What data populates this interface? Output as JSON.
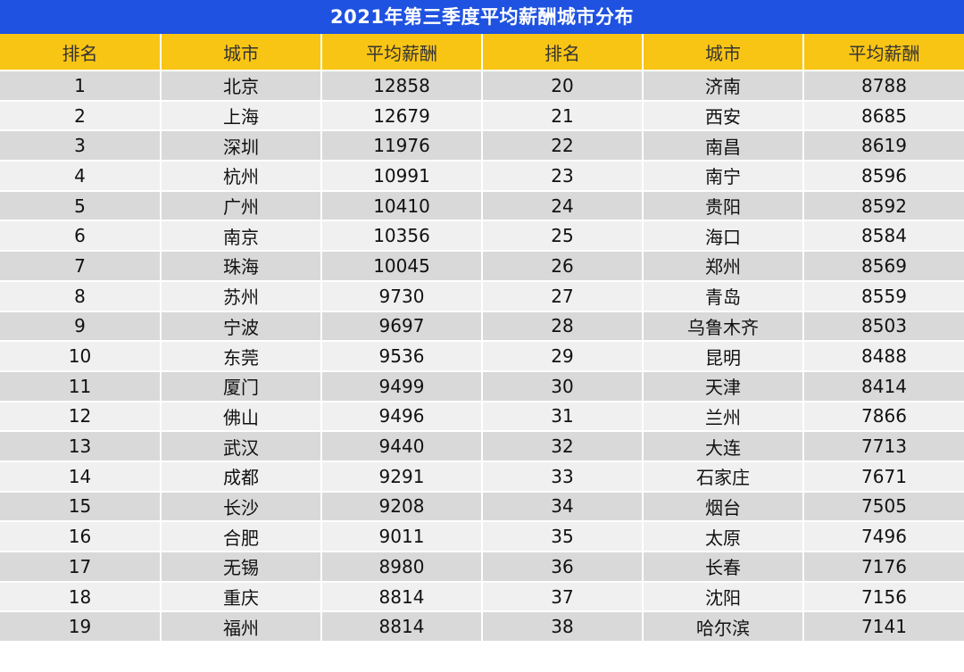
{
  "title": "2021年第三季度平均薪酬城市分布",
  "headers": [
    "排名",
    "城市",
    "平均薪酬",
    "排名",
    "城市",
    "平均薪酬"
  ],
  "colors": {
    "title_bg": "#1f52e0",
    "header_bg": "#f9c515",
    "row_odd_bg": "#d9d9d9",
    "row_even_bg": "#f0f0f0"
  },
  "rows": [
    {
      "rank_a": "1",
      "city_a": "北京",
      "salary_a": "12858",
      "rank_b": "20",
      "city_b": "济南",
      "salary_b": "8788"
    },
    {
      "rank_a": "2",
      "city_a": "上海",
      "salary_a": "12679",
      "rank_b": "21",
      "city_b": "西安",
      "salary_b": "8685"
    },
    {
      "rank_a": "3",
      "city_a": "深圳",
      "salary_a": "11976",
      "rank_b": "22",
      "city_b": "南昌",
      "salary_b": "8619"
    },
    {
      "rank_a": "4",
      "city_a": "杭州",
      "salary_a": "10991",
      "rank_b": "23",
      "city_b": "南宁",
      "salary_b": "8596"
    },
    {
      "rank_a": "5",
      "city_a": "广州",
      "salary_a": "10410",
      "rank_b": "24",
      "city_b": "贵阳",
      "salary_b": "8592"
    },
    {
      "rank_a": "6",
      "city_a": "南京",
      "salary_a": "10356",
      "rank_b": "25",
      "city_b": "海口",
      "salary_b": "8584"
    },
    {
      "rank_a": "7",
      "city_a": "珠海",
      "salary_a": "10045",
      "rank_b": "26",
      "city_b": "郑州",
      "salary_b": "8569"
    },
    {
      "rank_a": "8",
      "city_a": "苏州",
      "salary_a": "9730",
      "rank_b": "27",
      "city_b": "青岛",
      "salary_b": "8559"
    },
    {
      "rank_a": "9",
      "city_a": "宁波",
      "salary_a": "9697",
      "rank_b": "28",
      "city_b": "乌鲁木齐",
      "salary_b": "8503"
    },
    {
      "rank_a": "10",
      "city_a": "东莞",
      "salary_a": "9536",
      "rank_b": "29",
      "city_b": "昆明",
      "salary_b": "8488"
    },
    {
      "rank_a": "11",
      "city_a": "厦门",
      "salary_a": "9499",
      "rank_b": "30",
      "city_b": "天津",
      "salary_b": "8414"
    },
    {
      "rank_a": "12",
      "city_a": "佛山",
      "salary_a": "9496",
      "rank_b": "31",
      "city_b": "兰州",
      "salary_b": "7866"
    },
    {
      "rank_a": "13",
      "city_a": "武汉",
      "salary_a": "9440",
      "rank_b": "32",
      "city_b": "大连",
      "salary_b": "7713"
    },
    {
      "rank_a": "14",
      "city_a": "成都",
      "salary_a": "9291",
      "rank_b": "33",
      "city_b": "石家庄",
      "salary_b": "7671"
    },
    {
      "rank_a": "15",
      "city_a": "长沙",
      "salary_a": "9208",
      "rank_b": "34",
      "city_b": "烟台",
      "salary_b": "7505"
    },
    {
      "rank_a": "16",
      "city_a": "合肥",
      "salary_a": "9011",
      "rank_b": "35",
      "city_b": "太原",
      "salary_b": "7496"
    },
    {
      "rank_a": "17",
      "city_a": "无锡",
      "salary_a": "8980",
      "rank_b": "36",
      "city_b": "长春",
      "salary_b": "7176"
    },
    {
      "rank_a": "18",
      "city_a": "重庆",
      "salary_a": "8814",
      "rank_b": "37",
      "city_b": "沈阳",
      "salary_b": "7156"
    },
    {
      "rank_a": "19",
      "city_a": "福州",
      "salary_a": "8814",
      "rank_b": "38",
      "city_b": "哈尔滨",
      "salary_b": "7141"
    }
  ]
}
